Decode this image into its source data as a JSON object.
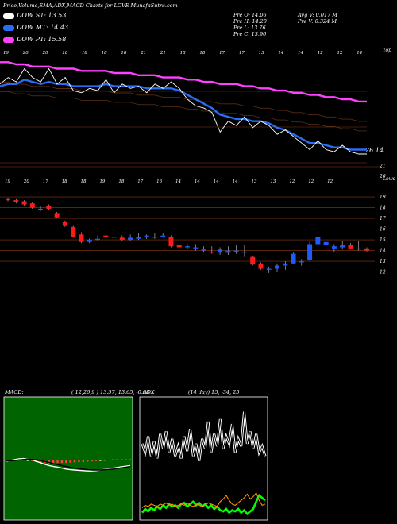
{
  "header": {
    "title": "Price,Volume,EMA,ADX,MACD Charts for LOVE MunafaSutra.com"
  },
  "legend": [
    {
      "label": "DOW ST: 13.53",
      "color": "#ffffff"
    },
    {
      "label": "DOW MT: 14.43",
      "color": "#2a6df4"
    },
    {
      "label": "DOW PT: 15.58",
      "color": "#ff40ff"
    }
  ],
  "prices": {
    "left": [
      "Pre O: 14.06",
      "Pre H: 14.20",
      "Pre L: 13.76",
      "Pre C: 13.96"
    ],
    "right": [
      "Avg V: 0.017 M",
      "Pre V: 0.324 M"
    ]
  },
  "colors": {
    "bull": "#1e5bff",
    "bear": "#ff1a1a",
    "ema_short": "#ffffff",
    "ema_mid": "#2a6df4",
    "ema_long": "#ff40ff",
    "gridline": "#8b3a14",
    "macd_bg": "#006400",
    "adx_green": "#00ff00",
    "adx_orange": "#ff8c00"
  },
  "chart_data": [
    {
      "type": "line",
      "name": "ema-panel",
      "top_axis_labels": [
        "19",
        "20",
        "20",
        "18",
        "18",
        "18",
        "18",
        "21",
        "21",
        "18",
        "18",
        "17",
        "17",
        "13",
        "14",
        "14",
        "12",
        "12",
        "14"
      ],
      "bottom_axis_labels": [
        "19",
        "20",
        "17",
        "18",
        "18",
        "19",
        "18",
        "17",
        "16",
        "14",
        "14",
        "14",
        "14",
        "13",
        "13",
        "12",
        "12",
        "12"
      ],
      "top_right_label": "Top",
      "bottom_right_label": "Lows",
      "right_value_label": "26.14",
      "y_tick_labels": [
        "21",
        "20"
      ],
      "series": [
        {
          "name": "DOW ST",
          "color": "#ffffff",
          "values": [
            18.6,
            18.9,
            18.7,
            19.3,
            18.9,
            18.7,
            19.3,
            18.6,
            18.9,
            18.3,
            18.2,
            18.4,
            18.3,
            18.8,
            18.2,
            18.6,
            18.4,
            18.5,
            18.2,
            18.6,
            18.4,
            18.7,
            18.4,
            17.9,
            17.6,
            17.5,
            17.3,
            16.4,
            16.9,
            16.7,
            17.1,
            16.6,
            16.9,
            16.7,
            16.3,
            16.5,
            16.2,
            15.9,
            15.6,
            16.0,
            15.6,
            15.5,
            15.8,
            15.5,
            15.4,
            15.4
          ]
        },
        {
          "name": "DOW MT",
          "color": "#2a6df4",
          "values": [
            18.5,
            18.6,
            18.6,
            18.8,
            18.7,
            18.6,
            18.7,
            18.6,
            18.6,
            18.5,
            18.5,
            18.5,
            18.5,
            18.6,
            18.5,
            18.5,
            18.5,
            18.5,
            18.4,
            18.4,
            18.4,
            18.4,
            18.3,
            18.1,
            17.9,
            17.7,
            17.5,
            17.2,
            17.1,
            17.0,
            17.0,
            16.9,
            16.9,
            16.8,
            16.6,
            16.5,
            16.3,
            16.1,
            15.9,
            15.9,
            15.8,
            15.7,
            15.7,
            15.6,
            15.6,
            15.6
          ]
        },
        {
          "name": "DOW PT",
          "color": "#ff40ff",
          "values": [
            19.6,
            19.6,
            19.5,
            19.5,
            19.4,
            19.4,
            19.4,
            19.3,
            19.3,
            19.3,
            19.2,
            19.2,
            19.2,
            19.2,
            19.1,
            19.1,
            19.1,
            19.0,
            19.0,
            19.0,
            18.9,
            18.9,
            18.9,
            18.8,
            18.8,
            18.7,
            18.7,
            18.6,
            18.6,
            18.6,
            18.5,
            18.5,
            18.4,
            18.4,
            18.3,
            18.3,
            18.2,
            18.2,
            18.1,
            18.1,
            18.0,
            18.0,
            17.9,
            17.9,
            17.8,
            17.8
          ]
        }
      ]
    },
    {
      "type": "bar",
      "name": "candlestick",
      "y_ticks": [
        19,
        18,
        17,
        16,
        15,
        14,
        13,
        12
      ],
      "ylim": [
        11.3,
        19.6
      ],
      "ohlc": [
        [
          18.8,
          18.9,
          18.6,
          18.7
        ],
        [
          18.7,
          18.8,
          18.4,
          18.5
        ],
        [
          18.6,
          18.7,
          18.2,
          18.3
        ],
        [
          18.4,
          18.5,
          17.9,
          18.0
        ],
        [
          17.8,
          18.1,
          17.7,
          17.9
        ],
        [
          18.2,
          18.3,
          17.8,
          17.9
        ],
        [
          17.5,
          17.6,
          17.0,
          17.1
        ],
        [
          16.7,
          16.8,
          16.2,
          16.3
        ],
        [
          16.2,
          16.3,
          15.2,
          15.3
        ],
        [
          15.5,
          15.7,
          14.7,
          14.8
        ],
        [
          14.8,
          15.1,
          14.7,
          15.0
        ],
        [
          15.0,
          15.4,
          14.9,
          15.1
        ],
        [
          15.4,
          15.9,
          15.1,
          15.3
        ],
        [
          15.2,
          15.4,
          14.8,
          15.3
        ],
        [
          15.2,
          15.4,
          14.9,
          15.0
        ],
        [
          15.0,
          15.5,
          14.9,
          15.2
        ],
        [
          15.1,
          15.6,
          15.0,
          15.3
        ],
        [
          15.3,
          15.5,
          15.1,
          15.4
        ],
        [
          15.3,
          15.6,
          15.1,
          15.2
        ],
        [
          15.4,
          15.6,
          15.2,
          15.4
        ],
        [
          15.3,
          15.4,
          14.3,
          14.4
        ],
        [
          14.5,
          14.7,
          14.2,
          14.3
        ],
        [
          14.3,
          14.6,
          14.2,
          14.4
        ],
        [
          14.2,
          14.6,
          14.0,
          14.3
        ],
        [
          14.0,
          14.4,
          13.8,
          14.1
        ],
        [
          13.9,
          14.4,
          13.7,
          13.8
        ],
        [
          13.8,
          14.3,
          13.6,
          14.1
        ],
        [
          13.8,
          14.4,
          13.6,
          14.0
        ],
        [
          13.9,
          14.5,
          13.7,
          14.0
        ],
        [
          13.8,
          14.5,
          13.4,
          13.9
        ],
        [
          13.4,
          13.5,
          12.6,
          12.7
        ],
        [
          12.8,
          12.9,
          12.2,
          12.3
        ],
        [
          12.2,
          12.5,
          11.9,
          12.3
        ],
        [
          12.3,
          12.8,
          12.0,
          12.6
        ],
        [
          12.6,
          13.0,
          12.2,
          12.8
        ],
        [
          12.8,
          13.8,
          12.7,
          13.7
        ],
        [
          12.9,
          13.2,
          12.6,
          13.0
        ],
        [
          13.1,
          14.9,
          13.0,
          14.6
        ],
        [
          14.6,
          15.4,
          14.4,
          15.3
        ],
        [
          14.5,
          14.9,
          14.2,
          14.8
        ],
        [
          14.2,
          14.6,
          13.9,
          14.4
        ],
        [
          14.3,
          14.9,
          14.1,
          14.5
        ],
        [
          14.5,
          14.7,
          14.1,
          14.2
        ],
        [
          14.1,
          14.9,
          14.0,
          14.2
        ],
        [
          14.2,
          14.3,
          13.9,
          14.0
        ]
      ]
    },
    {
      "type": "bar",
      "name": "macd",
      "title": "MACD:",
      "params": "( 12,26,9 ) 13.57,  13.65,  -0.08",
      "macd": [
        -0.04,
        0.0,
        0.03,
        0.05,
        0.06,
        0.04,
        0.02,
        -0.03,
        -0.07,
        -0.12,
        -0.16,
        -0.19,
        -0.21,
        -0.24,
        -0.27,
        -0.29,
        -0.3,
        -0.31,
        -0.32,
        -0.33,
        -0.33,
        -0.32,
        -0.3,
        -0.28,
        -0.26,
        -0.24,
        -0.22,
        -0.2,
        -0.18,
        -0.16
      ],
      "signal": [
        -0.02,
        -0.01,
        0.0,
        0.02,
        0.03,
        0.04,
        0.03,
        0.02,
        0.0,
        -0.03,
        -0.06,
        -0.1,
        -0.13,
        -0.16,
        -0.19,
        -0.22,
        -0.24,
        -0.26,
        -0.27,
        -0.29,
        -0.3,
        -0.3,
        -0.3,
        -0.29,
        -0.28,
        -0.27,
        -0.25,
        -0.23,
        -0.21,
        -0.19
      ],
      "histogram": [
        -0.02,
        0.01,
        0.03,
        0.03,
        0.03,
        0.0,
        -0.01,
        -0.05,
        -0.07,
        -0.09,
        -0.1,
        -0.09,
        -0.08,
        -0.08,
        -0.08,
        -0.07,
        -0.06,
        -0.05,
        -0.05,
        -0.04,
        -0.03,
        -0.02,
        0.0,
        0.01,
        0.02,
        0.03,
        0.03,
        0.03,
        0.03,
        0.03
      ]
    },
    {
      "type": "line",
      "name": "adx",
      "title": "ADX",
      "params": "(14 day) 15,  -34,  25",
      "series": [
        {
          "name": "ADX",
          "color": "#ffffff",
          "values": [
            0.62,
            0.55,
            0.68,
            0.52,
            0.64,
            0.5,
            0.7,
            0.58,
            0.72,
            0.55,
            0.66,
            0.52,
            0.6,
            0.5,
            0.68,
            0.56,
            0.74,
            0.52,
            0.62,
            0.48,
            0.66,
            0.58,
            0.8,
            0.55,
            0.7,
            0.6,
            0.82,
            0.58,
            0.68,
            0.62,
            0.78,
            0.55,
            0.66,
            0.6,
            0.88,
            0.62,
            0.72,
            0.58,
            0.7,
            0.55,
            0.6,
            0.52
          ]
        },
        {
          "name": "+DI",
          "color": "#00ff00",
          "values": [
            0.06,
            0.09,
            0.07,
            0.1,
            0.08,
            0.11,
            0.09,
            0.12,
            0.1,
            0.13,
            0.11,
            0.12,
            0.1,
            0.13,
            0.14,
            0.11,
            0.13,
            0.15,
            0.12,
            0.14,
            0.11,
            0.13,
            0.1,
            0.12,
            0.09,
            0.11,
            0.08,
            0.07,
            0.09,
            0.06,
            0.08,
            0.07,
            0.09,
            0.06,
            0.08,
            0.05,
            0.07,
            0.09,
            0.15,
            0.2,
            0.18,
            0.16
          ]
        },
        {
          "name": "-DI",
          "color": "#ff8c00",
          "values": [
            0.1,
            0.12,
            0.11,
            0.13,
            0.12,
            0.11,
            0.13,
            0.12,
            0.14,
            0.12,
            0.13,
            0.11,
            0.12,
            0.13,
            0.12,
            0.14,
            0.12,
            0.11,
            0.13,
            0.12,
            0.11,
            0.12,
            0.14,
            0.13,
            0.12,
            0.11,
            0.15,
            0.17,
            0.2,
            0.16,
            0.13,
            0.12,
            0.14,
            0.16,
            0.18,
            0.21,
            0.17,
            0.19,
            0.22,
            0.16,
            0.12,
            0.13
          ]
        }
      ]
    }
  ]
}
